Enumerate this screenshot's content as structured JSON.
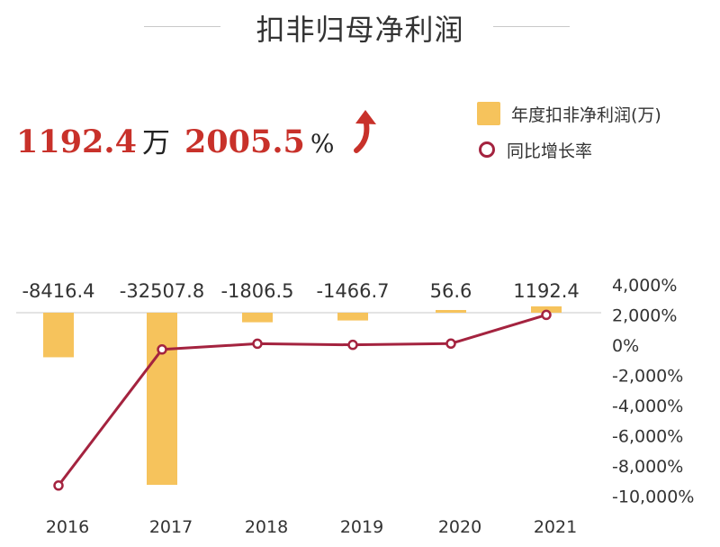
{
  "title": "扣非归母净利润",
  "headline": {
    "value": "1192.4",
    "value_unit": "万",
    "growth": "2005.5",
    "growth_unit": "%",
    "arrow_icon": "red-up-arrow-icon"
  },
  "legend": {
    "bar_label": "年度扣非净利润(万)",
    "line_label": "同比增长率"
  },
  "colors": {
    "bar": "#f6c35c",
    "line": "#a4233f",
    "highlight": "#c8312a"
  },
  "chart_data": {
    "type": "bar",
    "categories": [
      "2016",
      "2017",
      "2018",
      "2019",
      "2020",
      "2021"
    ],
    "series": [
      {
        "name": "年度扣非净利润(万)",
        "type": "bar",
        "values": [
          -8416.4,
          -32507.8,
          -1806.5,
          -1466.7,
          56.6,
          1192.4
        ],
        "labels": [
          "-8416.4",
          "-32507.8",
          "-1806.5",
          "-1466.7",
          "56.6",
          "1192.4"
        ]
      },
      {
        "name": "同比增长率",
        "type": "line",
        "axis": "right",
        "values": [
          -9300,
          -286,
          94,
          19,
          104,
          2005.5
        ]
      }
    ],
    "right_axis": {
      "ticks": [
        4000,
        2000,
        0,
        -2000,
        -4000,
        -6000,
        -8000,
        -10000
      ],
      "tick_labels": [
        "4,000%",
        "2,000%",
        "0%",
        "-2,000%",
        "-4,000%",
        "-6,000%",
        "-8,000%",
        "-10,000%"
      ],
      "ylim": [
        -10000,
        4000
      ]
    },
    "left_axis": {
      "ylim": [
        -32507.8,
        1192.4
      ]
    },
    "grid": false,
    "legend_position": "top-right"
  }
}
